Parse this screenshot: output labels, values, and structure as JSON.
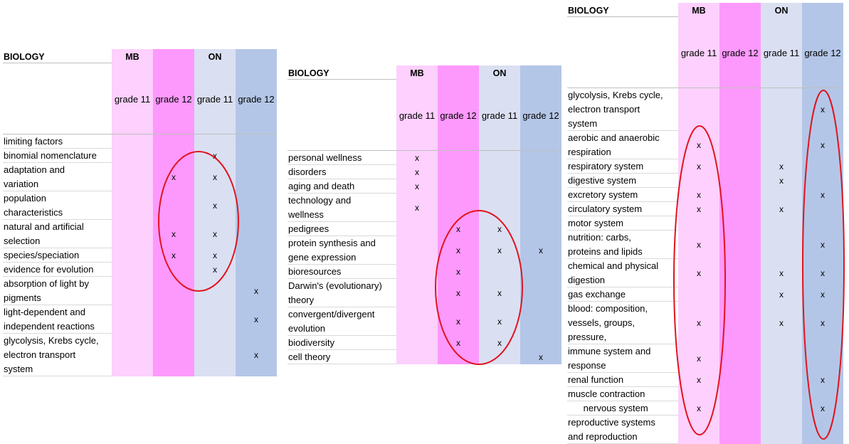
{
  "tables": [
    {
      "title": "BIOLOGY",
      "groups": [
        "MB",
        "ON"
      ],
      "columns": [
        "grade 11",
        "grade 12",
        "grade 11",
        "grade 12"
      ],
      "rows": [
        {
          "label": [
            "limiting factors"
          ],
          "marks": [
            "",
            "",
            "",
            ""
          ]
        },
        {
          "label": [
            "binomial nomenclature"
          ],
          "marks": [
            "",
            "",
            "x",
            ""
          ]
        },
        {
          "label": [
            "adaptation and",
            "variation"
          ],
          "marks": [
            "",
            "x",
            "x",
            ""
          ]
        },
        {
          "label": [
            "population",
            "characteristics"
          ],
          "marks": [
            "",
            "",
            "x",
            ""
          ]
        },
        {
          "label": [
            "natural and artificial",
            "selection"
          ],
          "marks": [
            "",
            "x",
            "x",
            ""
          ]
        },
        {
          "label": [
            "species/speciation"
          ],
          "marks": [
            "",
            "x",
            "x",
            ""
          ]
        },
        {
          "label": [
            "evidence for evolution"
          ],
          "marks": [
            "",
            "",
            "x",
            ""
          ]
        },
        {
          "label": [
            "absorption of light by",
            "pigments"
          ],
          "marks": [
            "",
            "",
            "",
            "x"
          ]
        },
        {
          "label": [
            "light-dependent and",
            "independent reactions"
          ],
          "marks": [
            "",
            "",
            "",
            "x"
          ]
        },
        {
          "label": [
            "glycolysis, Krebs cycle,",
            "electron transport",
            "system"
          ],
          "marks": [
            "",
            "",
            "",
            "x"
          ]
        }
      ]
    },
    {
      "title": "BIOLOGY",
      "groups": [
        "MB",
        "ON"
      ],
      "columns": [
        "grade 11",
        "grade 12",
        "grade 11",
        "grade 12"
      ],
      "rows": [
        {
          "label": [
            "personal wellness"
          ],
          "marks": [
            "x",
            "",
            "",
            ""
          ]
        },
        {
          "label": [
            "disorders"
          ],
          "marks": [
            "x",
            "",
            "",
            ""
          ]
        },
        {
          "label": [
            "aging and death"
          ],
          "marks": [
            "x",
            "",
            "",
            ""
          ]
        },
        {
          "label": [
            "technology and",
            "wellness"
          ],
          "marks": [
            "x",
            "",
            "",
            ""
          ]
        },
        {
          "label": [
            "pedigrees"
          ],
          "marks": [
            "",
            "x",
            "x",
            ""
          ]
        },
        {
          "label": [
            "protein synthesis and",
            "gene expression"
          ],
          "marks": [
            "",
            "x",
            "x",
            "x"
          ]
        },
        {
          "label": [
            "bioresources"
          ],
          "marks": [
            "",
            "x",
            "",
            ""
          ]
        },
        {
          "label": [
            "Darwin's (evolutionary)",
            "theory"
          ],
          "marks": [
            "",
            "x",
            "x",
            ""
          ]
        },
        {
          "label": [
            "convergent/divergent",
            "evolution"
          ],
          "marks": [
            "",
            "x",
            "x",
            ""
          ]
        },
        {
          "label": [
            "biodiversity"
          ],
          "marks": [
            "",
            "x",
            "x",
            ""
          ]
        },
        {
          "label": [
            "cell theory"
          ],
          "marks": [
            "",
            "",
            "",
            "x"
          ]
        }
      ]
    },
    {
      "title": "BIOLOGY",
      "groups": [
        "MB",
        "ON"
      ],
      "columns": [
        "grade 11",
        "grade 12",
        "grade 11",
        "grade 12"
      ],
      "rows": [
        {
          "label": [
            "glycolysis, Krebs cycle,",
            "electron transport",
            "system"
          ],
          "marks": [
            "",
            "",
            "",
            "x"
          ]
        },
        {
          "label": [
            "aerobic and anaerobic",
            "respiration"
          ],
          "marks": [
            "x",
            "",
            "",
            "x"
          ]
        },
        {
          "label": [
            "respiratory system"
          ],
          "marks": [
            "x",
            "",
            "x",
            ""
          ]
        },
        {
          "label": [
            "digestive system"
          ],
          "marks": [
            "",
            "",
            "x",
            ""
          ]
        },
        {
          "label": [
            "excretory system"
          ],
          "marks": [
            "x",
            "",
            "",
            "x"
          ]
        },
        {
          "label": [
            "circulatory system"
          ],
          "marks": [
            "x",
            "",
            "x",
            ""
          ]
        },
        {
          "label": [
            "motor system"
          ],
          "marks": [
            "",
            "",
            "",
            ""
          ]
        },
        {
          "label": [
            "nutrition: carbs,",
            "proteins and lipids"
          ],
          "marks": [
            "x",
            "",
            "",
            "x"
          ]
        },
        {
          "label": [
            "chemical and physical",
            "digestion"
          ],
          "marks": [
            "x",
            "",
            "x",
            "x"
          ]
        },
        {
          "label": [
            "gas exchange"
          ],
          "marks": [
            "",
            "",
            "x",
            "x"
          ]
        },
        {
          "label": [
            "blood: composition,",
            "vessels, groups,",
            "pressure,"
          ],
          "marks": [
            "x",
            "",
            "x",
            "x"
          ]
        },
        {
          "label": [
            "immune system and",
            "response"
          ],
          "marks": [
            "x",
            "",
            "",
            ""
          ]
        },
        {
          "label": [
            "renal function"
          ],
          "marks": [
            "x",
            "",
            "",
            "x"
          ]
        },
        {
          "label": [
            "muscle contraction"
          ],
          "marks": [
            "",
            "",
            "",
            ""
          ]
        },
        {
          "label": [
            "      nervous system"
          ],
          "marks": [
            "x",
            "",
            "",
            "x"
          ]
        },
        {
          "label": [
            "reproductive systems",
            "and reproduction"
          ],
          "marks": [
            "",
            "",
            "",
            ""
          ]
        }
      ]
    }
  ],
  "colors": {
    "mb_grade11": "#fdd0fd",
    "mb_grade12": "#fd99fd",
    "on_grade11": "#dae0f2",
    "on_grade12": "#b4c6e7",
    "highlight_ring": "#e0141e"
  }
}
